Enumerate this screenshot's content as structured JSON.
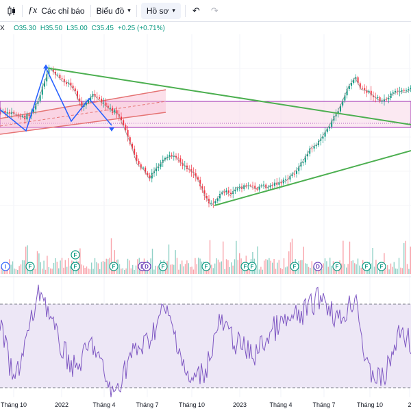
{
  "toolbar": {
    "chart_type_icon": "candlestick-icon",
    "indicators_icon": "function-fx-icon",
    "indicators_label": "Các chỉ báo",
    "chart_label": "Biểu đồ",
    "profile_label": "Hồ sơ",
    "undo_icon": "undo-arrow-icon",
    "redo_icon": "redo-arrow-icon"
  },
  "legend": {
    "symbol_fragment": "X",
    "open": "O35.30",
    "high": "H35.50",
    "low": "L35.00",
    "close": "C35.45",
    "change": "+0.25 (+0.71%)"
  },
  "colors": {
    "up": "#089981",
    "down": "#f23645",
    "trendline": "#4caf50",
    "pattern": "#2962ff",
    "channel": "#f23645",
    "rect_border": "#9c27b0",
    "rsi_line": "#7e57c2",
    "rsi_band": "#ede7f6"
  },
  "x_axis": {
    "labels": [
      "Tháng 10",
      "2022",
      "Tháng 4",
      "Tháng 7",
      "Tháng 10",
      "2023",
      "Tháng 4",
      "Tháng 7",
      "Tháng 10",
      "2"
    ]
  },
  "events": [
    {
      "type": "I"
    },
    {
      "type": "F"
    },
    {
      "type": "F"
    },
    {
      "type": "F"
    },
    {
      "type": "F"
    },
    {
      "type": "F"
    },
    {
      "type": "D"
    },
    {
      "type": "D"
    },
    {
      "type": "F"
    },
    {
      "type": "F"
    },
    {
      "type": "F"
    },
    {
      "type": "F"
    },
    {
      "type": "F"
    },
    {
      "type": "D"
    },
    {
      "type": "F"
    },
    {
      "type": "F"
    },
    {
      "type": "F"
    }
  ],
  "chart_data": {
    "type": "line",
    "series": [
      {
        "values": [
          40,
          38,
          39,
          37,
          36,
          39,
          45,
          56,
          66,
          62,
          58,
          57,
          52,
          43,
          46,
          50,
          46,
          43,
          40,
          38,
          29,
          20,
          8,
          5,
          -1,
          5,
          9,
          12,
          13,
          9,
          6,
          3,
          -3,
          -12,
          -17,
          -12,
          -8,
          -11,
          -6,
          -6,
          -5,
          -7,
          -5,
          -6,
          -4,
          -3,
          -2,
          2,
          6,
          12,
          18,
          20,
          26,
          32,
          38,
          46,
          55,
          60,
          53,
          52,
          49,
          46,
          47,
          50,
          52,
          51,
          53
        ]
      }
    ]
  }
}
